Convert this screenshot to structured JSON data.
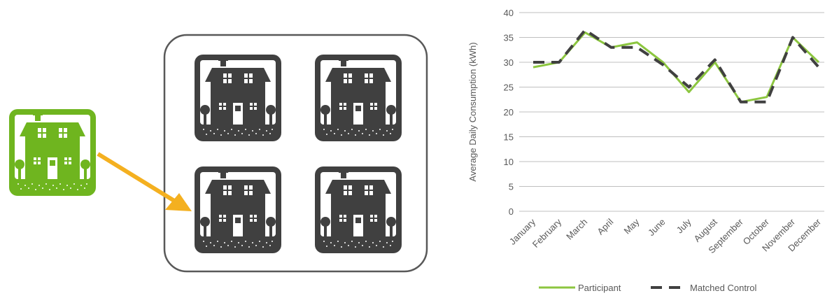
{
  "chart_data": {
    "type": "line",
    "y_label": "Average Daily Consumption (kWh)",
    "categories": [
      "January",
      "February",
      "March",
      "April",
      "May",
      "June",
      "July",
      "August",
      "September",
      "October",
      "November",
      "December"
    ],
    "series": [
      {
        "name": "Participant",
        "color": "#8cc63f",
        "dash": false,
        "values": [
          29,
          30,
          36,
          33,
          34,
          30,
          24,
          30,
          22,
          23,
          35,
          30
        ]
      },
      {
        "name": "Matched Control",
        "color": "#404040",
        "dash": true,
        "values": [
          30,
          30,
          36.5,
          33,
          33,
          29.5,
          25,
          30.5,
          22,
          22,
          35,
          29
        ]
      }
    ],
    "ylim": [
      0,
      40
    ],
    "yticks": [
      0,
      5,
      10,
      15,
      20,
      25,
      30,
      35,
      40
    ],
    "grid": true,
    "legend": "bottom"
  }
}
